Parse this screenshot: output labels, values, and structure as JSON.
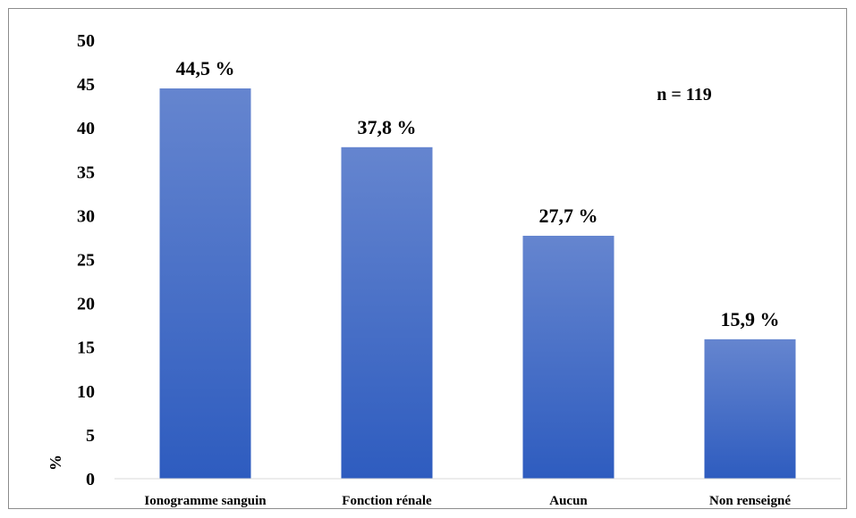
{
  "chart_data": {
    "type": "bar",
    "categories": [
      "Ionogramme sanguin",
      "Fonction rénale",
      "Aucun",
      "Non renseigné"
    ],
    "values": [
      44.5,
      37.8,
      27.7,
      15.9
    ],
    "data_labels": [
      "44,5 %",
      "37,8 %",
      "27,7 %",
      "15,9 %"
    ],
    "ylabel": "%",
    "ylim": [
      0,
      50
    ],
    "yticks": [
      0,
      5,
      10,
      15,
      20,
      25,
      30,
      35,
      40,
      45,
      50
    ],
    "annotation": "n = 119",
    "grid": false,
    "bar_color_top": "#6585cf",
    "bar_color_bottom": "#2e5cbf"
  }
}
